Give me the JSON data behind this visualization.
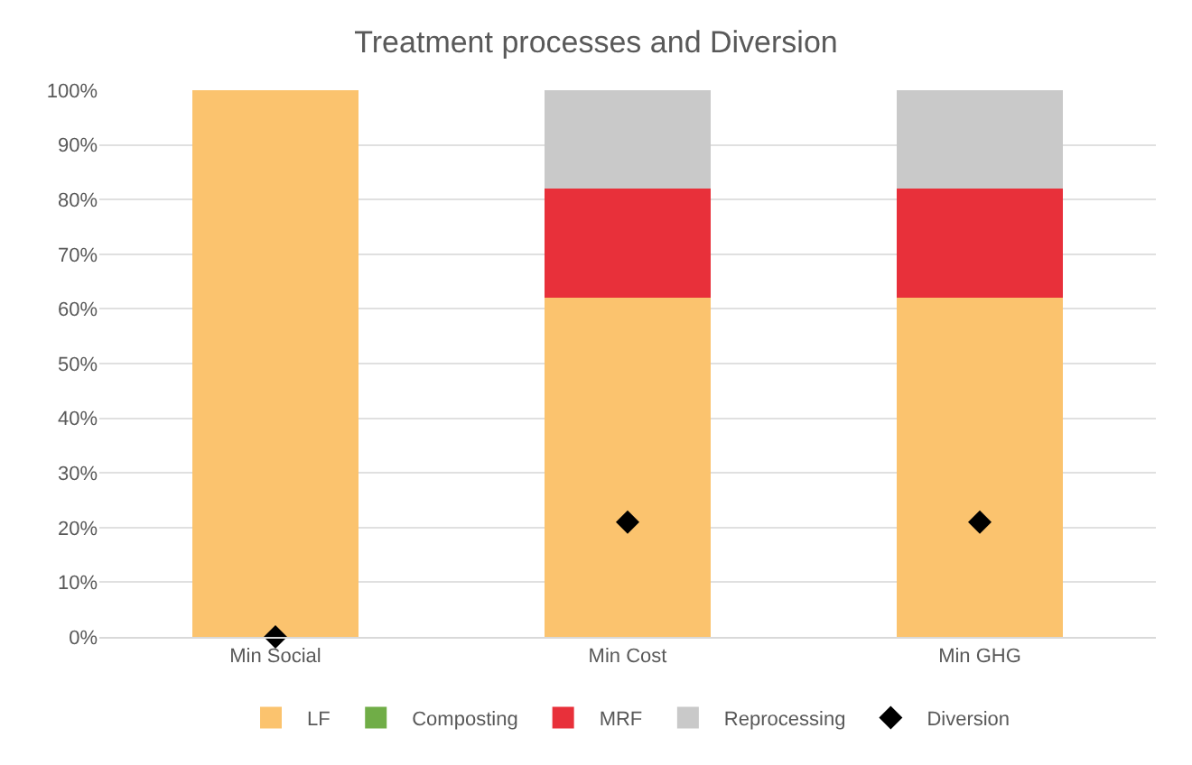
{
  "chart_data": {
    "type": "bar",
    "title": "Treatment processes and Diversion",
    "categories": [
      "Min Social",
      "Min Cost",
      "Min GHG"
    ],
    "stacked": true,
    "series": [
      {
        "name": "LF",
        "color": "#fbc36e",
        "values": [
          100,
          62,
          62
        ]
      },
      {
        "name": "Composting",
        "color": "#70ad47",
        "values": [
          0,
          0,
          0
        ]
      },
      {
        "name": "MRF",
        "color": "#e8303a",
        "values": [
          0,
          20,
          20
        ]
      },
      {
        "name": "Reprocessing",
        "color": "#c9c9c9",
        "values": [
          0,
          18,
          18
        ]
      },
      {
        "name": "Diversion",
        "type": "scatter",
        "marker": "diamond",
        "color": "#000000",
        "x": [
          "Min Social",
          "Min Cost",
          "Min GHG"
        ],
        "values": [
          0,
          21,
          21
        ]
      }
    ],
    "ylim": [
      0,
      100
    ],
    "yticks": [
      {
        "value": 0,
        "label": "0%"
      },
      {
        "value": 10,
        "label": "10%"
      },
      {
        "value": 20,
        "label": "20%"
      },
      {
        "value": 30,
        "label": "30%"
      },
      {
        "value": 40,
        "label": "40%"
      },
      {
        "value": 50,
        "label": "50%"
      },
      {
        "value": 60,
        "label": "60%"
      },
      {
        "value": 70,
        "label": "70%"
      },
      {
        "value": 80,
        "label": "80%"
      },
      {
        "value": 90,
        "label": "90%"
      },
      {
        "value": 100,
        "label": "100%"
      }
    ],
    "grid": "y",
    "legend": "bottom"
  }
}
